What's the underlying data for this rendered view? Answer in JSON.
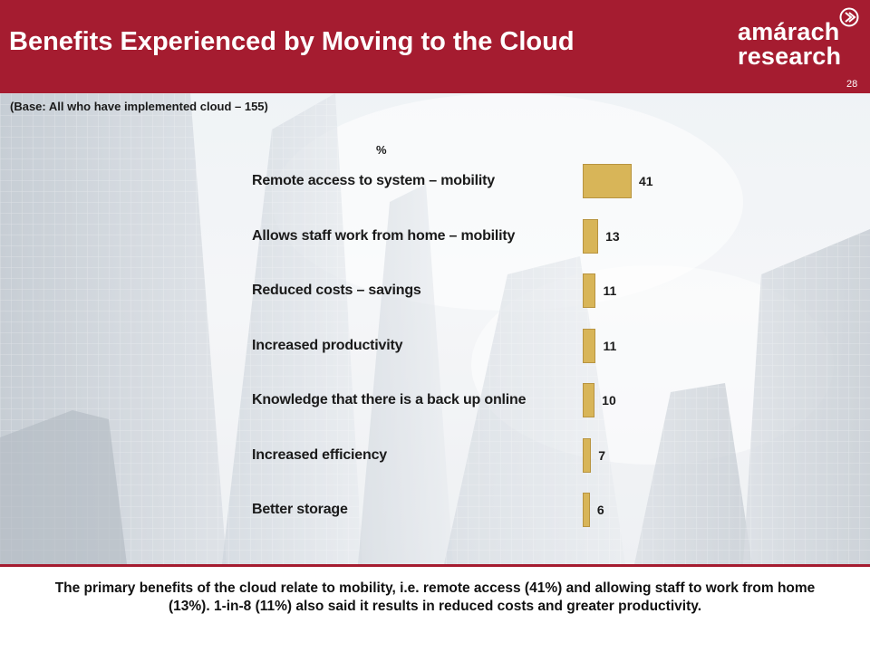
{
  "header": {
    "title": "Benefits Experienced by Moving to the Cloud",
    "logo_line1": "amárach",
    "logo_line2": "research",
    "page_number": "28",
    "brand_color": "#a51c30"
  },
  "base_note": "(Base: All who have implemented cloud – 155)",
  "chart_data": {
    "type": "bar",
    "orientation": "horizontal",
    "unit_label": "%",
    "categories": [
      "Remote access to system – mobility",
      "Allows staff work from home  – mobility",
      "Reduced costs – savings",
      "Increased productivity",
      "Knowledge that there is a back up online",
      "Increased efficiency",
      "Better storage"
    ],
    "values": [
      41,
      13,
      11,
      11,
      10,
      7,
      6
    ],
    "bar_color": "#d8b558",
    "xlim": [
      0,
      41
    ],
    "grid": false
  },
  "summary": "The primary benefits of the cloud relate to mobility, i.e. remote access (41%) and allowing staff to work from home (13%). 1-in-8 (11%) also said it results in reduced costs and greater productivity."
}
